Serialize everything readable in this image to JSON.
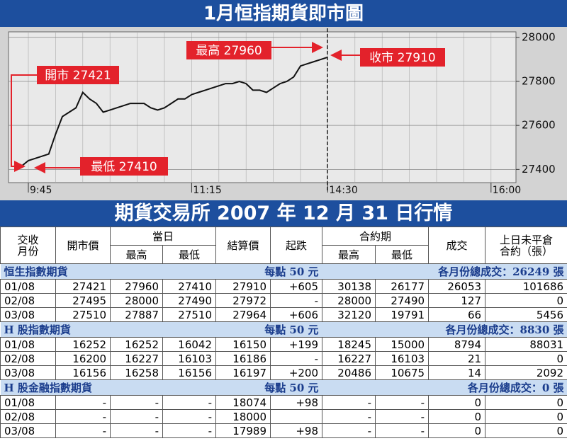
{
  "chart_data": {
    "type": "line",
    "title": "1月恒指期貨即市圖",
    "categories": [
      null,
      null,
      null,
      "9:45",
      null,
      null,
      null,
      null,
      null,
      null,
      null,
      null,
      null,
      null,
      null,
      null,
      null,
      null,
      null,
      null,
      null,
      null,
      null,
      null,
      null,
      null,
      null,
      "11:15",
      null,
      null,
      null,
      null,
      null,
      null,
      null,
      null,
      null,
      null,
      null,
      null,
      null,
      null,
      null,
      null,
      null,
      null,
      null,
      "14:30",
      null,
      null,
      null,
      null,
      null,
      null,
      null,
      null,
      null,
      null,
      null,
      null,
      null,
      null,
      null,
      null,
      null,
      null,
      null,
      null,
      null,
      null,
      null,
      "16:00",
      null,
      null,
      null
    ],
    "values": [
      null,
      null,
      27415,
      27440,
      27450,
      27460,
      27470,
      27560,
      27640,
      27660,
      27680,
      27750,
      27720,
      27700,
      27660,
      27670,
      27680,
      27690,
      27700,
      27700,
      27700,
      27680,
      27670,
      27680,
      27700,
      27720,
      27720,
      27740,
      27750,
      27760,
      27770,
      27780,
      27790,
      27790,
      27800,
      27790,
      27760,
      27760,
      27750,
      27770,
      27790,
      27800,
      27820,
      27870,
      27880,
      27890,
      27900,
      27910,
      null,
      null,
      null,
      null,
      null,
      null,
      null,
      null,
      null,
      null,
      null,
      null,
      null,
      null,
      null,
      null,
      null,
      null,
      null,
      null,
      null,
      null,
      null,
      null,
      null,
      null,
      null
    ],
    "color": "#111111",
    "ylim": [
      27340,
      28025
    ],
    "yticks": [
      27400,
      27600,
      27800,
      28000
    ],
    "grid": true,
    "annotations": [
      "最高 27960",
      "收市 27910",
      "開市 27421",
      "最低 27410"
    ]
  },
  "table": {
    "title": "期貨交易所 2007 年 12 月 31 日行情",
    "header": {
      "row1": [
        "交收\n月份",
        "開市價",
        "當日",
        "結算價",
        "起跌",
        "合約期",
        "成交",
        "上日未平倉\n合約（張）"
      ],
      "row2": [
        "最高",
        "最低",
        "最高",
        "最低"
      ]
    },
    "sections": [
      {
        "name": "恒生指數期貨",
        "unit": "每點 50 元",
        "total": "各月份總成交：26249 張",
        "rows": [
          [
            "01/08",
            "27421",
            "27960",
            "27410",
            "27910",
            "+605",
            "30138",
            "26177",
            "26053",
            "101686"
          ],
          [
            "02/08",
            "27495",
            "28000",
            "27490",
            "27972",
            "-",
            "28000",
            "27490",
            "127",
            "0"
          ],
          [
            "03/08",
            "27510",
            "27887",
            "27510",
            "27964",
            "+606",
            "32120",
            "19791",
            "66",
            "5456"
          ]
        ]
      },
      {
        "name": "H 股指數期貨",
        "unit": "每點 50 元",
        "total": "各月份總成交：8830 張",
        "rows": [
          [
            "01/08",
            "16252",
            "16252",
            "16042",
            "16150",
            "+199",
            "18245",
            "15000",
            "8794",
            "88031"
          ],
          [
            "02/08",
            "16200",
            "16227",
            "16103",
            "16186",
            "-",
            "16227",
            "16103",
            "21",
            "0"
          ],
          [
            "03/08",
            "16156",
            "16258",
            "16156",
            "16197",
            "+200",
            "20486",
            "10675",
            "14",
            "2092"
          ]
        ]
      },
      {
        "name": "H 股金融指數期貨",
        "unit": "每點 50 元",
        "total": "各月份總成交：0 張",
        "rows": [
          [
            "01/08",
            "-",
            "-",
            "-",
            "18074",
            "+98",
            "-",
            "-",
            "0",
            "0"
          ],
          [
            "02/08",
            "-",
            "-",
            "-",
            "18000",
            null,
            "-",
            "-",
            "0",
            "0"
          ],
          [
            "03/08",
            "-",
            "-",
            "-",
            "17989",
            "+98",
            "-",
            "-",
            "0",
            "0"
          ]
        ]
      }
    ]
  }
}
